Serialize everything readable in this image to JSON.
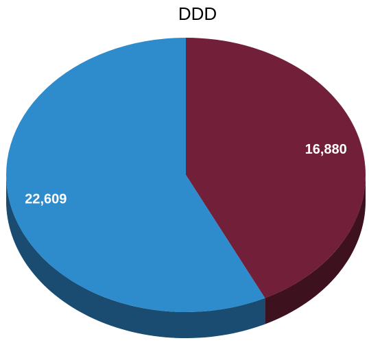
{
  "chart_data": {
    "type": "pie",
    "title": "DDD",
    "values": [
      16880,
      22609
    ],
    "value_labels": [
      "16,880",
      "22,609"
    ],
    "colors": [
      "#722039",
      "#2e8bcc"
    ]
  }
}
